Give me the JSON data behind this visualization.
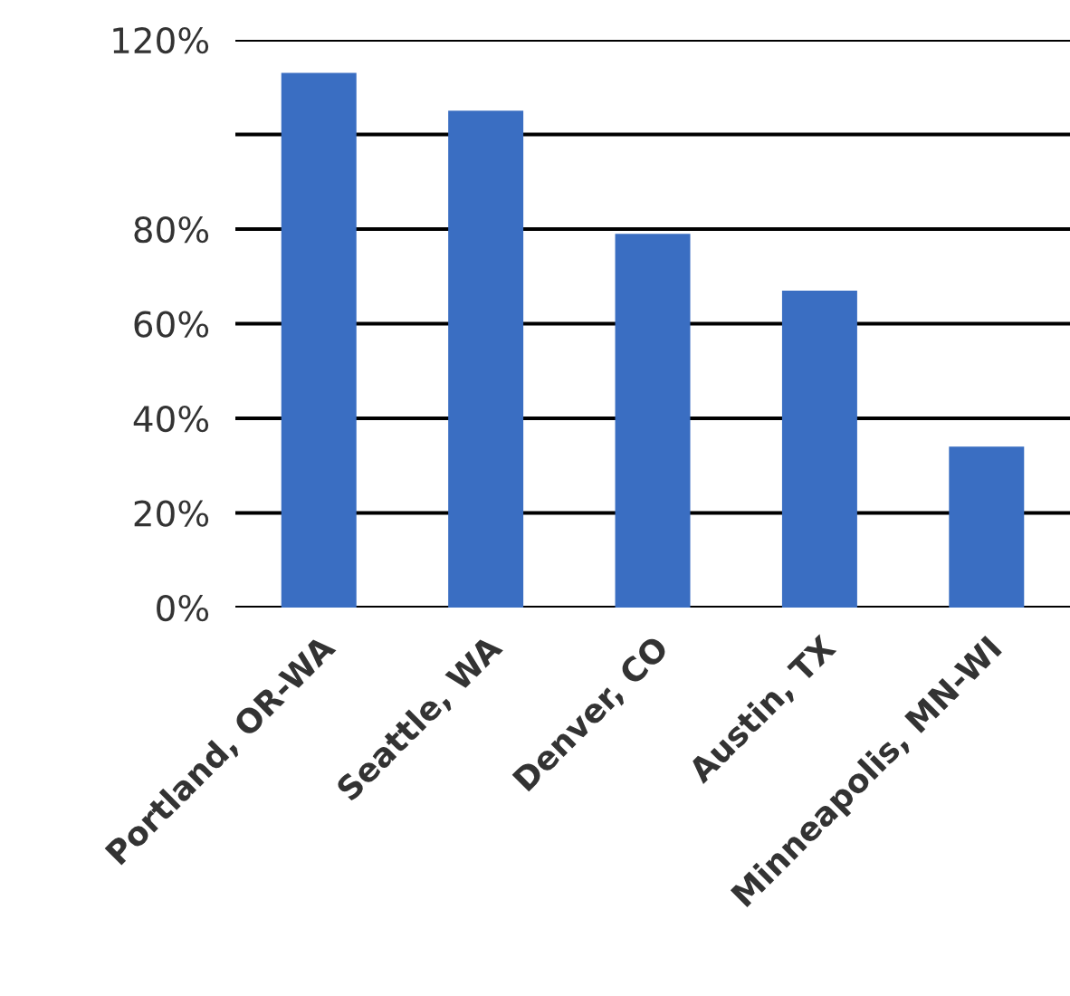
{
  "chart_data": {
    "type": "bar",
    "categories": [
      "Portland, OR-WA",
      "Seattle, WA",
      "Denver, CO",
      "Austin, TX",
      "Minneapolis, MN-WI"
    ],
    "values": [
      113,
      105,
      79,
      67,
      34
    ],
    "color": "#3a6ec2",
    "ylim": [
      0,
      120
    ],
    "yticks": [
      {
        "value": 0,
        "label": "0%"
      },
      {
        "value": 20,
        "label": "20%"
      },
      {
        "value": 40,
        "label": "40%"
      },
      {
        "value": 60,
        "label": "60%"
      },
      {
        "value": 80,
        "label": "80%"
      },
      {
        "value": 100,
        "label": null
      },
      {
        "value": 120,
        "label": "120%"
      }
    ],
    "grid": "y"
  }
}
